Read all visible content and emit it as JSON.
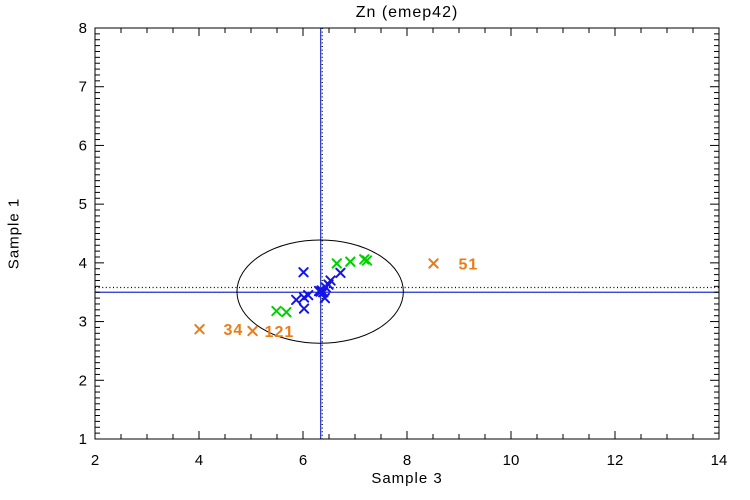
{
  "chart_data": {
    "type": "scatter",
    "title": "Zn (emep42)",
    "xlabel": "Sample 3",
    "ylabel": "Sample 1",
    "xlim": [
      2,
      14
    ],
    "ylim": [
      1,
      8
    ],
    "x_major_ticks": [
      2,
      4,
      6,
      8,
      10,
      12,
      14
    ],
    "x_tick_labels": [
      "2",
      "4",
      "6",
      "8",
      "10",
      "12",
      "14"
    ],
    "x_minor_step": 0.5,
    "y_major_ticks": [
      1,
      2,
      3,
      4,
      5,
      6,
      7,
      8
    ],
    "y_tick_labels": [
      "1",
      "2",
      "3",
      "4",
      "5",
      "6",
      "7",
      "8"
    ],
    "y_minor_step": 0.1,
    "grid": false,
    "frame_color": "#000000",
    "background_color": "#ffffff",
    "series": [
      {
        "name": "group-blue",
        "marker": "x",
        "color": "#1414e6",
        "points": [
          [
            6.01,
            3.84
          ],
          [
            6.72,
            3.83
          ],
          [
            6.53,
            3.7
          ],
          [
            6.49,
            3.63
          ],
          [
            6.44,
            3.58
          ],
          [
            6.36,
            3.53
          ],
          [
            6.31,
            3.52
          ],
          [
            6.39,
            3.5
          ],
          [
            6.34,
            3.51
          ],
          [
            6.1,
            3.45
          ],
          [
            6.02,
            3.41
          ],
          [
            5.87,
            3.37
          ],
          [
            6.42,
            3.4
          ],
          [
            6.02,
            3.22
          ]
        ]
      },
      {
        "name": "group-green",
        "marker": "x",
        "color": "#00d000",
        "points": [
          [
            6.65,
            3.99
          ],
          [
            6.91,
            4.02
          ],
          [
            7.18,
            4.06
          ],
          [
            7.23,
            4.04
          ],
          [
            5.49,
            3.18
          ],
          [
            5.68,
            3.16
          ]
        ]
      },
      {
        "name": "outliers-orange",
        "marker": "x",
        "color": "#e87d1a",
        "points": [
          [
            4.01,
            2.87
          ],
          [
            5.03,
            2.84
          ],
          [
            8.51,
            3.99
          ]
        ],
        "labels": [
          "34",
          "121",
          "51"
        ],
        "label_dx": [
          24,
          12,
          25
        ]
      }
    ],
    "ref_lines": [
      {
        "orient": "v",
        "value": 6.34,
        "style": "solid",
        "color": "#2233cc"
      },
      {
        "orient": "v",
        "value": 6.37,
        "style": "dotted",
        "color": "#000000"
      },
      {
        "orient": "h",
        "value": 3.5,
        "style": "solid",
        "color": "#2233cc"
      },
      {
        "orient": "h",
        "value": 3.58,
        "style": "dotted",
        "color": "#000000"
      }
    ],
    "ellipse": {
      "cx": 6.33,
      "cy": 3.51,
      "rx": 1.6,
      "ry": 0.88,
      "color": "#000000"
    }
  }
}
